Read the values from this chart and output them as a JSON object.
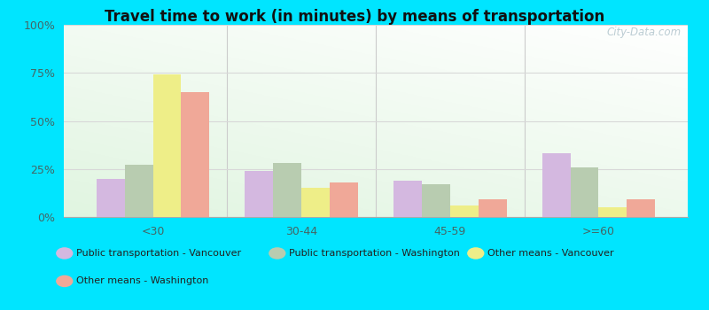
{
  "title": "Travel time to work (in minutes) by means of transportation",
  "categories": [
    "<30",
    "30-44",
    "45-59",
    ">=60"
  ],
  "series": {
    "Public transportation - Vancouver": [
      20,
      24,
      19,
      33
    ],
    "Public transportation - Washington": [
      27,
      28,
      17,
      26
    ],
    "Other means - Vancouver": [
      74,
      15,
      6,
      5
    ],
    "Other means - Washington": [
      65,
      18,
      9,
      9
    ]
  },
  "colors": {
    "Public transportation - Vancouver": "#d4b8e0",
    "Public transportation - Washington": "#b8ccb0",
    "Other means - Vancouver": "#eeee88",
    "Other means - Washington": "#f0a898"
  },
  "ylim": [
    0,
    100
  ],
  "yticks": [
    0,
    25,
    50,
    75,
    100
  ],
  "ytick_labels": [
    "0%",
    "25%",
    "50%",
    "75%",
    "100%"
  ],
  "outer_background": "#00e5ff",
  "grid_color": "#d8d8d8",
  "watermark": "City-Data.com",
  "bar_width": 0.19
}
